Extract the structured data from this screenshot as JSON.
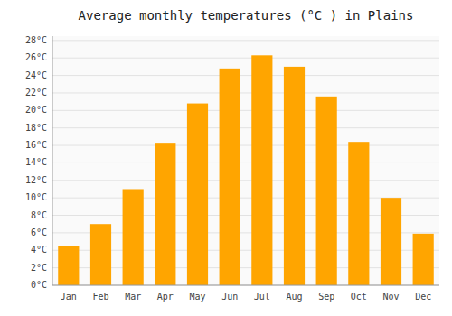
{
  "chart_data": {
    "type": "bar",
    "title": "Average monthly temperatures (°C ) in Plains",
    "categories": [
      "Jan",
      "Feb",
      "Mar",
      "Apr",
      "May",
      "Jun",
      "Jul",
      "Aug",
      "Sep",
      "Oct",
      "Nov",
      "Dec"
    ],
    "values": [
      4.5,
      7.0,
      11.0,
      16.3,
      20.8,
      24.8,
      26.3,
      25.0,
      21.6,
      16.4,
      10.0,
      5.9
    ],
    "color": "#FFA500",
    "ylim": [
      0,
      28.5
    ],
    "yticks": [
      {
        "value": 0,
        "label": "0°C"
      },
      {
        "value": 2,
        "label": "2°C"
      },
      {
        "value": 4,
        "label": "4°C"
      },
      {
        "value": 6,
        "label": "6°C"
      },
      {
        "value": 8,
        "label": "8°C"
      },
      {
        "value": 10,
        "label": "10°C"
      },
      {
        "value": 12,
        "label": "12°C"
      },
      {
        "value": 14,
        "label": "14°C"
      },
      {
        "value": 16,
        "label": "16°C"
      },
      {
        "value": 18,
        "label": "18°C"
      },
      {
        "value": 20,
        "label": "20°C"
      },
      {
        "value": 22,
        "label": "22°C"
      },
      {
        "value": 24,
        "label": "24°C"
      },
      {
        "value": 26,
        "label": "26°C"
      },
      {
        "value": 28,
        "label": "28°C"
      }
    ],
    "grid": true
  }
}
